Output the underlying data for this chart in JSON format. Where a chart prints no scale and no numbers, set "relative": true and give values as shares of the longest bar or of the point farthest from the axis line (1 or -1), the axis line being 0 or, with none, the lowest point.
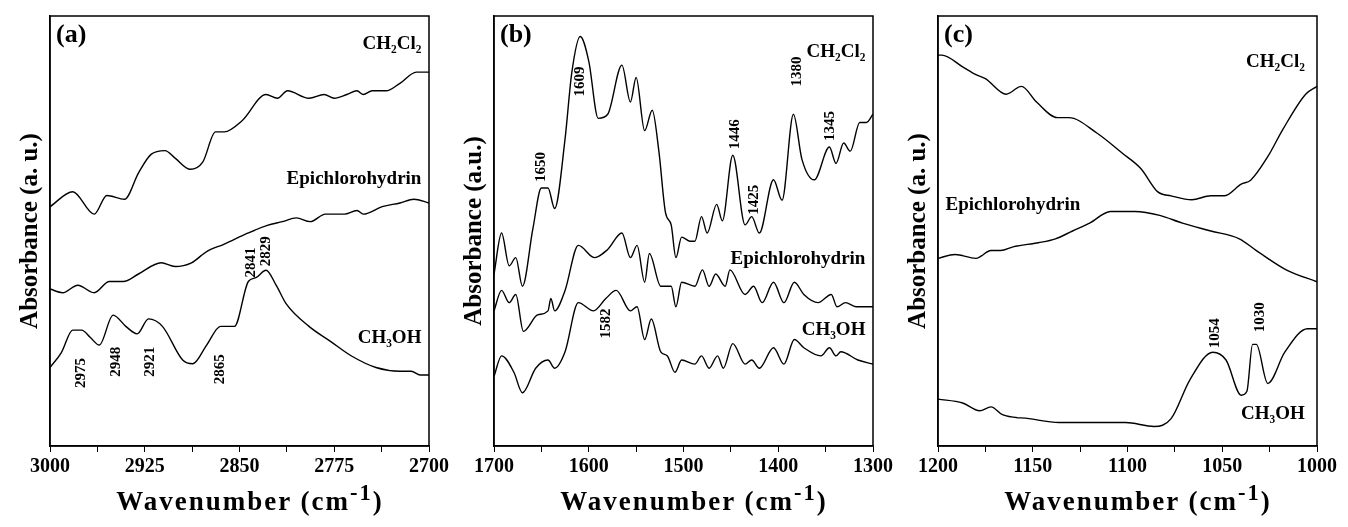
{
  "chart_data": [
    {
      "type": "line",
      "title": "(a)",
      "xlabel": "Wavenumber (cm$^{-1}$)",
      "ylabel": "Absorbance (a. u.)",
      "relative": true,
      "xlim": [
        3000,
        2700
      ],
      "xticks": [
        3000,
        {
          "value": 2962.5,
          "label": null
        },
        2925,
        {
          "value": 2887.5,
          "label": null
        },
        2850,
        {
          "value": 2812.5,
          "label": null
        },
        2775,
        {
          "value": 2737.5,
          "label": null
        },
        2700
      ],
      "series": [
        {
          "name": "CH₂Cl₂",
          "color": "#000000",
          "x": [
            3000,
            2982,
            2965,
            2955,
            2941,
            2930,
            2920,
            2909,
            2901,
            2889,
            2879,
            2869,
            2862,
            2848,
            2829,
            2820,
            2812,
            2795,
            2783,
            2775,
            2765,
            2757,
            2752,
            2745,
            2734,
            2723,
            2710,
            2700
          ],
          "values": [
            0.64,
            0.68,
            0.62,
            0.67,
            0.66,
            0.73,
            0.78,
            0.79,
            0.77,
            0.74,
            0.76,
            0.84,
            0.84,
            0.87,
            0.94,
            0.93,
            0.95,
            0.93,
            0.94,
            0.93,
            0.94,
            0.95,
            0.94,
            0.95,
            0.95,
            0.97,
            1,
            1
          ]
        },
        {
          "name": "Epichlorohydrin",
          "color": "#000000",
          "x": [
            3000,
            2990,
            2978,
            2965,
            2953,
            2942,
            2930,
            2912,
            2901,
            2888,
            2876,
            2862,
            2843,
            2828,
            2816,
            2805,
            2794,
            2782,
            2767,
            2757,
            2752,
            2737,
            2723,
            2712,
            2700
          ],
          "values": [
            0.42,
            0.41,
            0.43,
            0.41,
            0.44,
            0.44,
            0.46,
            0.49,
            0.48,
            0.49,
            0.52,
            0.54,
            0.57,
            0.59,
            0.6,
            0.61,
            0.6,
            0.62,
            0.62,
            0.63,
            0.62,
            0.64,
            0.65,
            0.66,
            0.65
          ]
        },
        {
          "name": "CH₃OH",
          "color": "#000000",
          "x": [
            3000,
            2991,
            2982,
            2975,
            2968,
            2961,
            2950,
            2940,
            2931,
            2922,
            2911,
            2895,
            2887,
            2876,
            2865,
            2854,
            2843,
            2837,
            2829,
            2821,
            2813,
            2795,
            2778,
            2761,
            2742,
            2723,
            2714,
            2707,
            2700
          ],
          "values": [
            0.21,
            0.25,
            0.31,
            0.31,
            0.29,
            0.27,
            0.35,
            0.32,
            0.3,
            0.34,
            0.32,
            0.23,
            0.22,
            0.27,
            0.32,
            0.32,
            0.44,
            0.45,
            0.47,
            0.43,
            0.38,
            0.32,
            0.28,
            0.24,
            0.21,
            0.2,
            0.2,
            0.19,
            0.19
          ]
        }
      ],
      "annotations": [
        {
          "text": "2975",
          "x": 2975,
          "y": 0.31
        },
        {
          "text": "2948",
          "x": 2948,
          "y": 0.34
        },
        {
          "text": "2921",
          "x": 2921,
          "y": 0.34
        },
        {
          "text": "2865",
          "x": 2865,
          "y": 0.32
        },
        {
          "text": "2841",
          "x": 2841,
          "y": 0.44
        },
        {
          "text": "2829",
          "x": 2829,
          "y": 0.47
        }
      ]
    },
    {
      "type": "line",
      "title": "(b)",
      "xlabel": "Wavenumber (cm$^{-1}$)",
      "ylabel": "Absorbance (a.u.)",
      "relative": true,
      "xlim": [
        1700,
        1300
      ],
      "xticks": [
        1700,
        {
          "value": 1650,
          "label": null
        },
        1600,
        {
          "value": 1550,
          "label": null
        },
        1500,
        {
          "value": 1450,
          "label": null
        },
        1400,
        {
          "value": 1350,
          "label": null
        },
        1300
      ],
      "series": [
        {
          "name": "CH₂Cl₂",
          "color": "#000000",
          "x": [
            1700,
            1692,
            1684,
            1677,
            1670,
            1659,
            1650,
            1643,
            1636,
            1625,
            1618,
            1609,
            1600,
            1590,
            1580,
            1565,
            1556,
            1550,
            1541,
            1533,
            1526,
            1519,
            1513,
            1508,
            1502,
            1493,
            1488,
            1481,
            1475,
            1465,
            1459,
            1448,
            1435,
            1428,
            1420,
            1405,
            1396,
            1384,
            1375,
            1362,
            1346,
            1339,
            1331,
            1324,
            1314,
            1307,
            1300
          ],
          "values": [
            0.42,
            0.52,
            0.44,
            0.46,
            0.39,
            0.53,
            0.63,
            0.63,
            0.58,
            0.75,
            0.91,
            1,
            0.94,
            0.8,
            0.81,
            0.93,
            0.84,
            0.9,
            0.77,
            0.82,
            0.72,
            0.57,
            0.54,
            0.46,
            0.51,
            0.5,
            0.5,
            0.56,
            0.52,
            0.59,
            0.55,
            0.71,
            0.54,
            0.56,
            0.52,
            0.65,
            0.6,
            0.81,
            0.7,
            0.65,
            0.73,
            0.69,
            0.74,
            0.72,
            0.79,
            0.79,
            0.81
          ]
        },
        {
          "name": "Epichlorohydrin",
          "color": "#000000",
          "x": [
            1700,
            1692,
            1684,
            1677,
            1669,
            1654,
            1643,
            1640,
            1636,
            1625,
            1611,
            1594,
            1580,
            1565,
            1556,
            1549,
            1541,
            1536,
            1524,
            1513,
            1508,
            1502,
            1488,
            1480,
            1473,
            1466,
            1456,
            1451,
            1435,
            1426,
            1417,
            1405,
            1394,
            1383,
            1373,
            1358,
            1344,
            1338,
            1329,
            1318,
            1300
          ],
          "values": [
            0.33,
            0.38,
            0.35,
            0.37,
            0.28,
            0.32,
            0.33,
            0.36,
            0.33,
            0.38,
            0.49,
            0.46,
            0.48,
            0.52,
            0.46,
            0.49,
            0.4,
            0.47,
            0.39,
            0.39,
            0.34,
            0.4,
            0.39,
            0.43,
            0.39,
            0.42,
            0.39,
            0.43,
            0.37,
            0.39,
            0.35,
            0.4,
            0.35,
            0.4,
            0.37,
            0.35,
            0.37,
            0.34,
            0.35,
            0.34,
            0.34
          ]
        },
        {
          "name": "CH₃OH",
          "color": "#000000",
          "x": [
            1700,
            1692,
            1679,
            1670,
            1656,
            1643,
            1636,
            1625,
            1611,
            1595,
            1582,
            1571,
            1556,
            1549,
            1541,
            1534,
            1524,
            1517,
            1509,
            1502,
            1488,
            1481,
            1473,
            1464,
            1458,
            1448,
            1435,
            1428,
            1420,
            1405,
            1394,
            1383,
            1373,
            1355,
            1346,
            1339,
            1334,
            1316,
            1300
          ],
          "values": [
            0.17,
            0.22,
            0.18,
            0.13,
            0.19,
            0.21,
            0.19,
            0.23,
            0.35,
            0.33,
            0.36,
            0.38,
            0.33,
            0.34,
            0.26,
            0.31,
            0.23,
            0.22,
            0.18,
            0.21,
            0.2,
            0.22,
            0.19,
            0.22,
            0.19,
            0.25,
            0.2,
            0.21,
            0.19,
            0.24,
            0.2,
            0.26,
            0.24,
            0.22,
            0.24,
            0.22,
            0.23,
            0.21,
            0.2
          ]
        }
      ],
      "annotations": [
        {
          "text": "1650",
          "x": 1650,
          "y": 0.63
        },
        {
          "text": "1609",
          "x": 1609,
          "y": 1
        },
        {
          "text": "1446",
          "x": 1446,
          "y": 0.71
        },
        {
          "text": "1425",
          "x": 1425,
          "y": 0.55
        },
        {
          "text": "1380",
          "x": 1380,
          "y": 0.78
        },
        {
          "text": "1345",
          "x": 1345,
          "y": 0.73
        },
        {
          "text": "1582",
          "x": 1582,
          "y": 0.36
        }
      ]
    },
    {
      "type": "line",
      "title": "(c)",
      "xlabel": "Wavenumber (cm$^{-1}$)",
      "ylabel": "Absorbance (a. u.)",
      "relative": true,
      "xlim": [
        1200,
        1000
      ],
      "xticks": [
        1200,
        {
          "value": 1175,
          "label": null
        },
        1150,
        {
          "value": 1125,
          "label": null
        },
        1100,
        {
          "value": 1075,
          "label": null
        },
        1050,
        {
          "value": 1025,
          "label": null
        },
        1000
      ],
      "series": [
        {
          "name": "CH₂Cl₂",
          "color": "#000000",
          "x": [
            1200,
            1198,
            1187,
            1180,
            1175,
            1164,
            1156,
            1148,
            1137,
            1131,
            1116,
            1103,
            1093,
            1084,
            1077,
            1066,
            1056,
            1049,
            1040,
            1035,
            1026,
            1018,
            1006,
            1000
          ],
          "values": [
            1,
            1,
            0.97,
            0.95,
            0.94,
            0.9,
            0.92,
            0.88,
            0.84,
            0.84,
            0.8,
            0.75,
            0.71,
            0.65,
            0.64,
            0.63,
            0.64,
            0.64,
            0.67,
            0.68,
            0.74,
            0.81,
            0.9,
            0.92
          ]
        },
        {
          "name": "Epichlorohydrin",
          "color": "#000000",
          "x": [
            1200,
            1191,
            1180,
            1172,
            1167,
            1160,
            1147,
            1138,
            1129,
            1120,
            1109,
            1096,
            1083,
            1071,
            1056,
            1041,
            1032,
            1016,
            1000
          ],
          "values": [
            0.48,
            0.49,
            0.48,
            0.5,
            0.5,
            0.51,
            0.52,
            0.53,
            0.55,
            0.57,
            0.6,
            0.6,
            0.59,
            0.57,
            0.55,
            0.53,
            0.5,
            0.45,
            0.42
          ]
        },
        {
          "name": "CH₃OH",
          "color": "#000000",
          "x": [
            1200,
            1187,
            1178,
            1172,
            1166,
            1152,
            1136,
            1125,
            1112,
            1101,
            1086,
            1077,
            1067,
            1055,
            1048,
            1040,
            1037,
            1034,
            1032,
            1026,
            1017,
            1005,
            1000
          ],
          "values": [
            0.12,
            0.11,
            0.09,
            0.1,
            0.08,
            0.07,
            0.06,
            0.06,
            0.06,
            0.06,
            0.05,
            0.07,
            0.17,
            0.24,
            0.22,
            0.13,
            0.14,
            0.26,
            0.26,
            0.16,
            0.24,
            0.3,
            0.3
          ]
        }
      ],
      "annotations": [
        {
          "text": "1054",
          "x": 1054,
          "y": 0.24
        },
        {
          "text": "1030",
          "x": 1030,
          "y": 0.24
        }
      ]
    }
  ]
}
